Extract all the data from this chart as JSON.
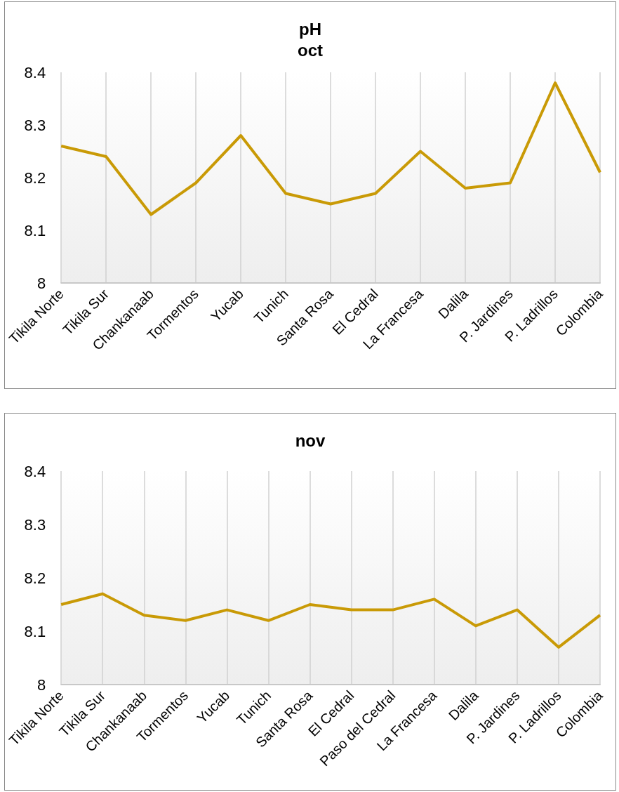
{
  "chart_data": [
    {
      "type": "line",
      "title": "pH\noct",
      "categories": [
        "Tikila Norte",
        "Tikila Sur",
        "Chankanaab",
        "Tormentos",
        "Yucab",
        "Tunich",
        "Santa Rosa",
        "El Cedral",
        "La Francesa",
        "Dalila",
        "P. Jardines",
        "P. Ladrillos",
        "Colombia"
      ],
      "values": [
        8.26,
        8.24,
        8.13,
        8.19,
        8.28,
        8.17,
        8.15,
        8.17,
        8.25,
        8.18,
        8.19,
        8.38,
        8.21
      ],
      "color": "#c99a06",
      "ylim": [
        8,
        8.4
      ],
      "yticks": [
        8,
        8.1,
        8.2,
        8.3,
        8.4
      ],
      "grid": "x",
      "marker": "none"
    },
    {
      "type": "line",
      "title": "nov",
      "categories": [
        "Tikila Norte",
        "Tikila Sur",
        "Chankanaab",
        "Tormentos",
        "Yucab",
        "Tunich",
        "Santa Rosa",
        "El Cedral",
        "Paso del Cedral",
        "La Francesa",
        "Dalila",
        "P. Jardines",
        "P. Ladrillos",
        "Colombia"
      ],
      "values": [
        8.15,
        8.17,
        8.13,
        8.12,
        8.14,
        8.12,
        8.15,
        8.14,
        8.14,
        8.16,
        8.11,
        8.14,
        8.07,
        8.13
      ],
      "color": "#c99a06",
      "ylim": [
        8,
        8.4
      ],
      "yticks": [
        8,
        8.1,
        8.2,
        8.3,
        8.4
      ],
      "grid": "x",
      "marker": "none"
    }
  ]
}
